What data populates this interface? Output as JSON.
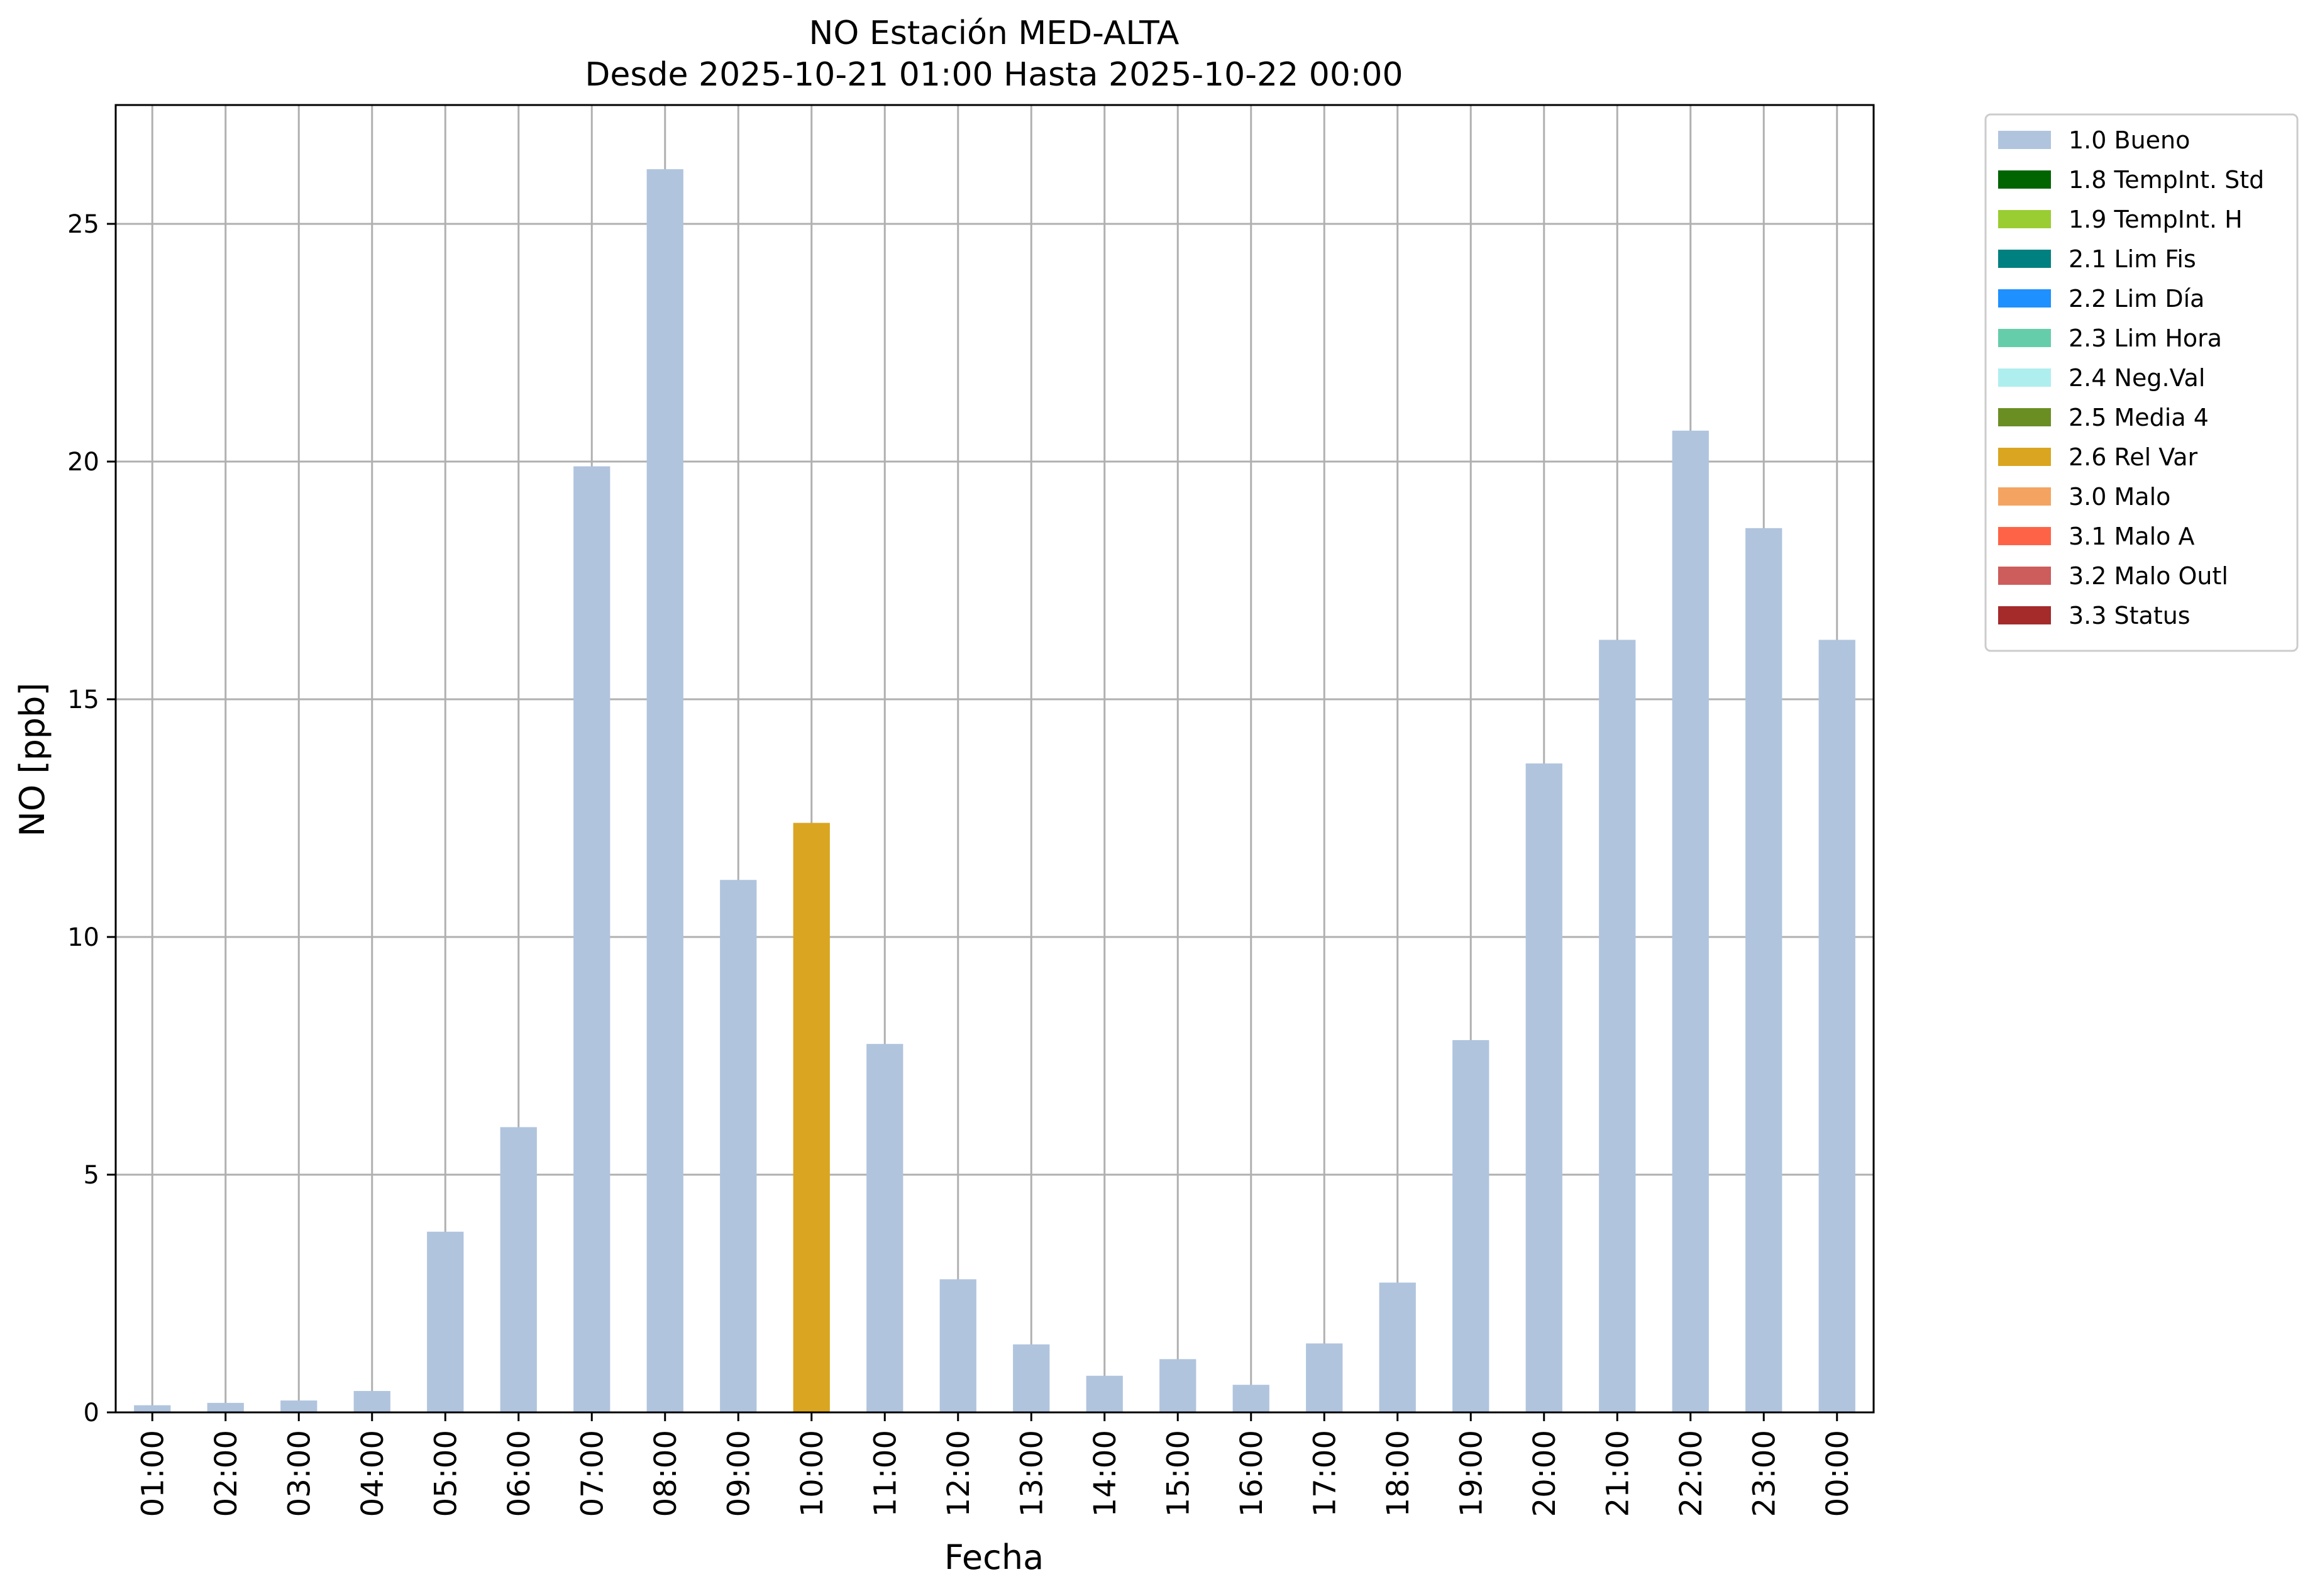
{
  "chart_data": {
    "type": "bar",
    "title": "NO Estación MED-ALTA",
    "subtitle": "Desde 2025-10-21 01:00 Hasta 2025-10-22 00:00",
    "xlabel": "Fecha",
    "ylabel": "NO [ppb]",
    "ylim": [
      0,
      27.5
    ],
    "yticks": [
      0,
      5,
      10,
      15,
      20,
      25
    ],
    "grid": true,
    "legend_position": "outside right, top",
    "categories": [
      "01:00",
      "02:00",
      "03:00",
      "04:00",
      "05:00",
      "06:00",
      "07:00",
      "08:00",
      "09:00",
      "10:00",
      "11:00",
      "12:00",
      "13:00",
      "14:00",
      "15:00",
      "16:00",
      "17:00",
      "18:00",
      "19:00",
      "20:00",
      "21:00",
      "22:00",
      "23:00",
      "00:00"
    ],
    "values": [
      0.15,
      0.2,
      0.25,
      0.45,
      3.8,
      6.0,
      19.9,
      26.15,
      11.2,
      12.4,
      7.75,
      2.8,
      1.43,
      0.77,
      1.12,
      0.58,
      1.45,
      2.73,
      7.83,
      13.65,
      16.25,
      20.65,
      18.6,
      16.25
    ],
    "flags": [
      "1.0",
      "1.0",
      "1.0",
      "1.0",
      "1.0",
      "1.0",
      "1.0",
      "1.0",
      "1.0",
      "2.6",
      "1.0",
      "1.0",
      "1.0",
      "1.0",
      "1.0",
      "1.0",
      "1.0",
      "1.0",
      "1.0",
      "1.0",
      "1.0",
      "1.0",
      "1.0",
      "1.0"
    ],
    "legend": [
      {
        "code": "1.0",
        "label": "1.0 Bueno",
        "color": "#b0c4de"
      },
      {
        "code": "1.8",
        "label": "1.8 TempInt. Std",
        "color": "#006400"
      },
      {
        "code": "1.9",
        "label": "1.9 TempInt. H",
        "color": "#9acd32"
      },
      {
        "code": "2.1",
        "label": "2.1 Lim Fis",
        "color": "#008080"
      },
      {
        "code": "2.2",
        "label": "2.2 Lim Día",
        "color": "#1e90ff"
      },
      {
        "code": "2.3",
        "label": "2.3 Lim Hora",
        "color": "#66cdaa"
      },
      {
        "code": "2.4",
        "label": "2.4 Neg.Val",
        "color": "#afeeee"
      },
      {
        "code": "2.5",
        "label": "2.5 Media 4",
        "color": "#6b8e23"
      },
      {
        "code": "2.6",
        "label": "2.6 Rel Var",
        "color": "#daa520"
      },
      {
        "code": "3.0",
        "label": "3.0 Malo",
        "color": "#f4a460"
      },
      {
        "code": "3.1",
        "label": "3.1 Malo A",
        "color": "#ff6347"
      },
      {
        "code": "3.2",
        "label": "3.2 Malo Outl",
        "color": "#cd5c5c"
      },
      {
        "code": "3.3",
        "label": "3.3 Status",
        "color": "#a52a2a"
      }
    ]
  }
}
